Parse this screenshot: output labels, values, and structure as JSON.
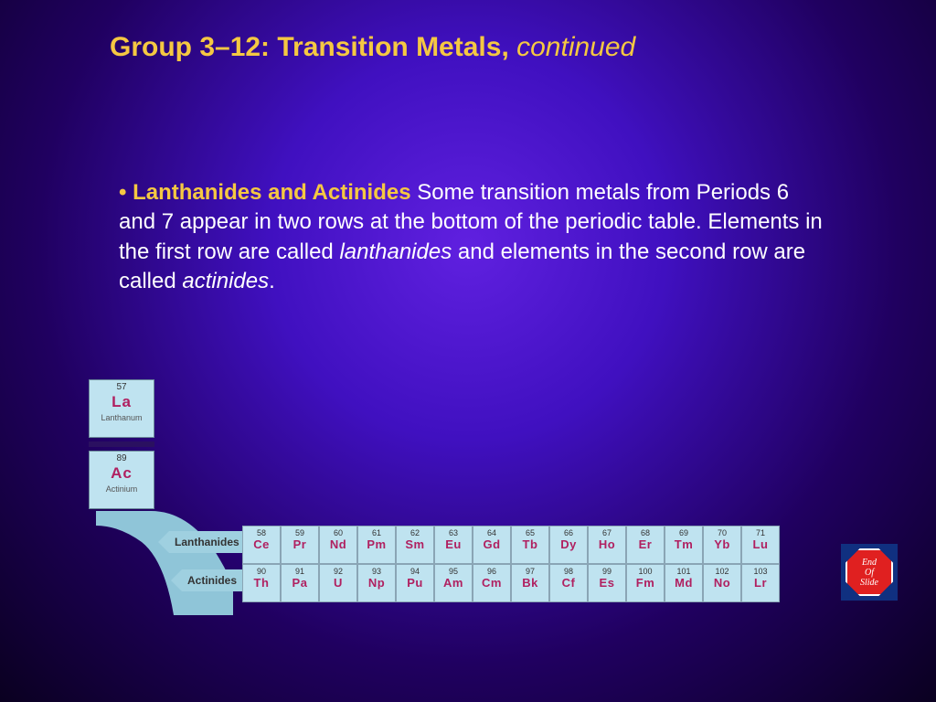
{
  "title": {
    "bold": "Group 3–12: Transition Metals,",
    "italic": "continued"
  },
  "body": {
    "bullet": "•",
    "topic": "Lanthanides and Actinides",
    "text1": "  Some transition metals from Periods 6 and 7 appear in two rows at the bottom of the periodic table. Elements in the first row are called ",
    "ital1": "lanthanides",
    "text2": " and elements in the second row are called ",
    "ital2": "actinides",
    "text3": "."
  },
  "colors": {
    "accent": "#f5c842",
    "cell_bg": "#bfe3f0",
    "symbol": "#b02060",
    "end_bg": "#103080",
    "stop": "#e02020"
  },
  "big_cells": [
    {
      "num": "57",
      "sym": "La",
      "name": "Lanthanum"
    },
    {
      "num": "89",
      "sym": "Ac",
      "name": "Actinium"
    }
  ],
  "row_labels": {
    "lan": "Lanthanides",
    "act": "Actinides"
  },
  "lanthanides": [
    {
      "n": "58",
      "s": "Ce"
    },
    {
      "n": "59",
      "s": "Pr"
    },
    {
      "n": "60",
      "s": "Nd"
    },
    {
      "n": "61",
      "s": "Pm"
    },
    {
      "n": "62",
      "s": "Sm"
    },
    {
      "n": "63",
      "s": "Eu"
    },
    {
      "n": "64",
      "s": "Gd"
    },
    {
      "n": "65",
      "s": "Tb"
    },
    {
      "n": "66",
      "s": "Dy"
    },
    {
      "n": "67",
      "s": "Ho"
    },
    {
      "n": "68",
      "s": "Er"
    },
    {
      "n": "69",
      "s": "Tm"
    },
    {
      "n": "70",
      "s": "Yb"
    },
    {
      "n": "71",
      "s": "Lu"
    }
  ],
  "actinides": [
    {
      "n": "90",
      "s": "Th"
    },
    {
      "n": "91",
      "s": "Pa"
    },
    {
      "n": "92",
      "s": "U"
    },
    {
      "n": "93",
      "s": "Np"
    },
    {
      "n": "94",
      "s": "Pu"
    },
    {
      "n": "95",
      "s": "Am"
    },
    {
      "n": "96",
      "s": "Cm"
    },
    {
      "n": "97",
      "s": "Bk"
    },
    {
      "n": "98",
      "s": "Cf"
    },
    {
      "n": "99",
      "s": "Es"
    },
    {
      "n": "100",
      "s": "Fm"
    },
    {
      "n": "101",
      "s": "Md"
    },
    {
      "n": "102",
      "s": "No"
    },
    {
      "n": "103",
      "s": "Lr"
    }
  ],
  "end": {
    "l1": "End",
    "l2": "Of",
    "l3": "Slide"
  }
}
